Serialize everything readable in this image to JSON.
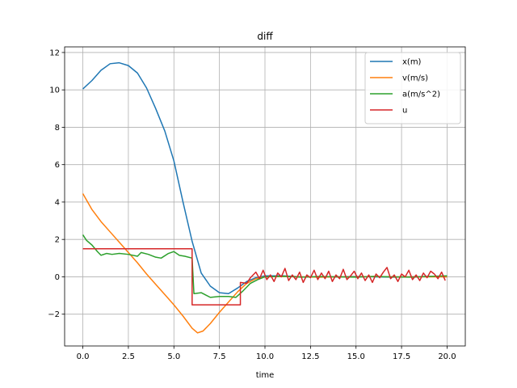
{
  "chart_data": {
    "type": "line",
    "title": "diff",
    "xlabel": "time",
    "ylabel": "",
    "xlim": [
      -1.0,
      21.0
    ],
    "ylim": [
      -3.7,
      12.3
    ],
    "xticks": [
      0.0,
      2.5,
      5.0,
      7.5,
      10.0,
      12.5,
      15.0,
      17.5,
      20.0
    ],
    "xtick_labels": [
      "0.0",
      "2.5",
      "5.0",
      "7.5",
      "10.0",
      "12.5",
      "15.0",
      "17.5",
      "20.0"
    ],
    "yticks": [
      -2,
      0,
      2,
      4,
      6,
      8,
      10,
      12
    ],
    "ytick_labels": [
      "−2",
      "0",
      "2",
      "4",
      "6",
      "8",
      "10",
      "12"
    ],
    "grid": true,
    "legend_position": "top-right",
    "series": [
      {
        "name": "x(m)",
        "color": "#1f77b4",
        "points": [
          [
            0,
            10.05
          ],
          [
            0.5,
            10.5
          ],
          [
            1.0,
            11.05
          ],
          [
            1.5,
            11.4
          ],
          [
            2.0,
            11.45
          ],
          [
            2.5,
            11.3
          ],
          [
            3.0,
            10.9
          ],
          [
            3.5,
            10.1
          ],
          [
            4.0,
            9.0
          ],
          [
            4.5,
            7.8
          ],
          [
            5.0,
            6.2
          ],
          [
            5.5,
            4.0
          ],
          [
            6.0,
            1.9
          ],
          [
            6.5,
            0.2
          ],
          [
            7.0,
            -0.5
          ],
          [
            7.5,
            -0.85
          ],
          [
            8.0,
            -0.9
          ],
          [
            8.5,
            -0.6
          ],
          [
            9.0,
            -0.25
          ],
          [
            9.5,
            -0.05
          ],
          [
            10.0,
            0.05
          ],
          [
            11.0,
            0.05
          ],
          [
            12.0,
            0.0
          ],
          [
            13.0,
            -0.02
          ],
          [
            14.0,
            0.0
          ],
          [
            15.0,
            0.02
          ],
          [
            16.0,
            0.0
          ],
          [
            17.0,
            -0.02
          ],
          [
            18.0,
            0.0
          ],
          [
            19.0,
            0.02
          ],
          [
            20.0,
            0.0
          ]
        ]
      },
      {
        "name": "v(m/s)",
        "color": "#ff7f0e",
        "points": [
          [
            0,
            4.45
          ],
          [
            0.5,
            3.6
          ],
          [
            1.0,
            2.95
          ],
          [
            1.5,
            2.4
          ],
          [
            2.0,
            1.85
          ],
          [
            2.5,
            1.3
          ],
          [
            3.0,
            0.75
          ],
          [
            3.5,
            0.15
          ],
          [
            4.0,
            -0.4
          ],
          [
            4.5,
            -0.95
          ],
          [
            5.0,
            -1.5
          ],
          [
            5.5,
            -2.1
          ],
          [
            6.0,
            -2.75
          ],
          [
            6.3,
            -3.0
          ],
          [
            6.6,
            -2.9
          ],
          [
            7.0,
            -2.5
          ],
          [
            7.5,
            -1.9
          ],
          [
            8.0,
            -1.35
          ],
          [
            8.5,
            -0.8
          ],
          [
            9.0,
            -0.35
          ],
          [
            9.5,
            -0.1
          ],
          [
            10.0,
            0.0
          ],
          [
            11.0,
            0.02
          ],
          [
            12.0,
            0.0
          ],
          [
            13.0,
            -0.02
          ],
          [
            14.0,
            0.0
          ],
          [
            15.0,
            0.0
          ],
          [
            16.0,
            0.02
          ],
          [
            17.0,
            0.0
          ],
          [
            18.0,
            0.0
          ],
          [
            19.0,
            0.0
          ],
          [
            20.0,
            0.0
          ]
        ]
      },
      {
        "name": "a(m/s^2)",
        "color": "#2ca02c",
        "points": [
          [
            0,
            2.25
          ],
          [
            0.2,
            1.95
          ],
          [
            0.5,
            1.7
          ],
          [
            0.8,
            1.35
          ],
          [
            1.0,
            1.15
          ],
          [
            1.3,
            1.25
          ],
          [
            1.6,
            1.2
          ],
          [
            2.0,
            1.25
          ],
          [
            2.5,
            1.2
          ],
          [
            3.0,
            1.1
          ],
          [
            3.2,
            1.3
          ],
          [
            3.6,
            1.2
          ],
          [
            4.0,
            1.05
          ],
          [
            4.3,
            1.0
          ],
          [
            4.7,
            1.25
          ],
          [
            5.0,
            1.35
          ],
          [
            5.3,
            1.15
          ],
          [
            5.6,
            1.1
          ],
          [
            6.0,
            1.0
          ],
          [
            6.1,
            -0.9
          ],
          [
            6.5,
            -0.85
          ],
          [
            7.0,
            -1.1
          ],
          [
            7.5,
            -1.05
          ],
          [
            8.0,
            -1.05
          ],
          [
            8.4,
            -1.1
          ],
          [
            8.8,
            -0.75
          ],
          [
            9.2,
            -0.35
          ],
          [
            9.6,
            -0.15
          ],
          [
            10.0,
            0.0
          ],
          [
            11.0,
            0.03
          ],
          [
            12.0,
            -0.02
          ],
          [
            13.0,
            0.02
          ],
          [
            14.0,
            0.0
          ],
          [
            15.0,
            -0.02
          ],
          [
            16.0,
            0.02
          ],
          [
            17.0,
            0.0
          ],
          [
            18.0,
            -0.02
          ],
          [
            19.0,
            0.02
          ],
          [
            20.0,
            0.05
          ]
        ]
      },
      {
        "name": "u",
        "color": "#d62728",
        "points": [
          [
            0,
            1.5
          ],
          [
            6.0,
            1.5
          ],
          [
            6.0,
            -1.5
          ],
          [
            8.65,
            -1.5
          ],
          [
            8.65,
            -0.3
          ],
          [
            9.0,
            -0.35
          ],
          [
            9.2,
            -0.05
          ],
          [
            9.5,
            0.25
          ],
          [
            9.7,
            -0.1
          ],
          [
            9.9,
            0.35
          ],
          [
            10.1,
            -0.15
          ],
          [
            10.3,
            0.1
          ],
          [
            10.5,
            -0.25
          ],
          [
            10.7,
            0.2
          ],
          [
            10.9,
            0.0
          ],
          [
            11.1,
            0.45
          ],
          [
            11.3,
            -0.2
          ],
          [
            11.5,
            0.1
          ],
          [
            11.7,
            -0.15
          ],
          [
            11.9,
            0.25
          ],
          [
            12.1,
            -0.3
          ],
          [
            12.3,
            0.1
          ],
          [
            12.5,
            -0.05
          ],
          [
            12.7,
            0.35
          ],
          [
            12.9,
            -0.15
          ],
          [
            13.1,
            0.2
          ],
          [
            13.3,
            -0.1
          ],
          [
            13.5,
            0.3
          ],
          [
            13.7,
            -0.25
          ],
          [
            13.9,
            0.1
          ],
          [
            14.1,
            -0.1
          ],
          [
            14.3,
            0.4
          ],
          [
            14.5,
            -0.15
          ],
          [
            14.7,
            0.05
          ],
          [
            14.9,
            0.3
          ],
          [
            15.1,
            -0.1
          ],
          [
            15.3,
            0.2
          ],
          [
            15.5,
            -0.2
          ],
          [
            15.7,
            0.1
          ],
          [
            15.9,
            -0.3
          ],
          [
            16.1,
            0.15
          ],
          [
            16.3,
            -0.05
          ],
          [
            16.5,
            0.25
          ],
          [
            16.7,
            0.5
          ],
          [
            16.9,
            -0.1
          ],
          [
            17.1,
            0.1
          ],
          [
            17.3,
            -0.25
          ],
          [
            17.5,
            0.15
          ],
          [
            17.7,
            0.0
          ],
          [
            17.9,
            0.35
          ],
          [
            18.1,
            -0.15
          ],
          [
            18.3,
            0.1
          ],
          [
            18.5,
            -0.2
          ],
          [
            18.7,
            0.2
          ],
          [
            18.9,
            -0.05
          ],
          [
            19.1,
            0.3
          ],
          [
            19.3,
            0.15
          ],
          [
            19.5,
            -0.1
          ],
          [
            19.7,
            0.25
          ],
          [
            19.9,
            -0.2
          ]
        ]
      }
    ]
  }
}
